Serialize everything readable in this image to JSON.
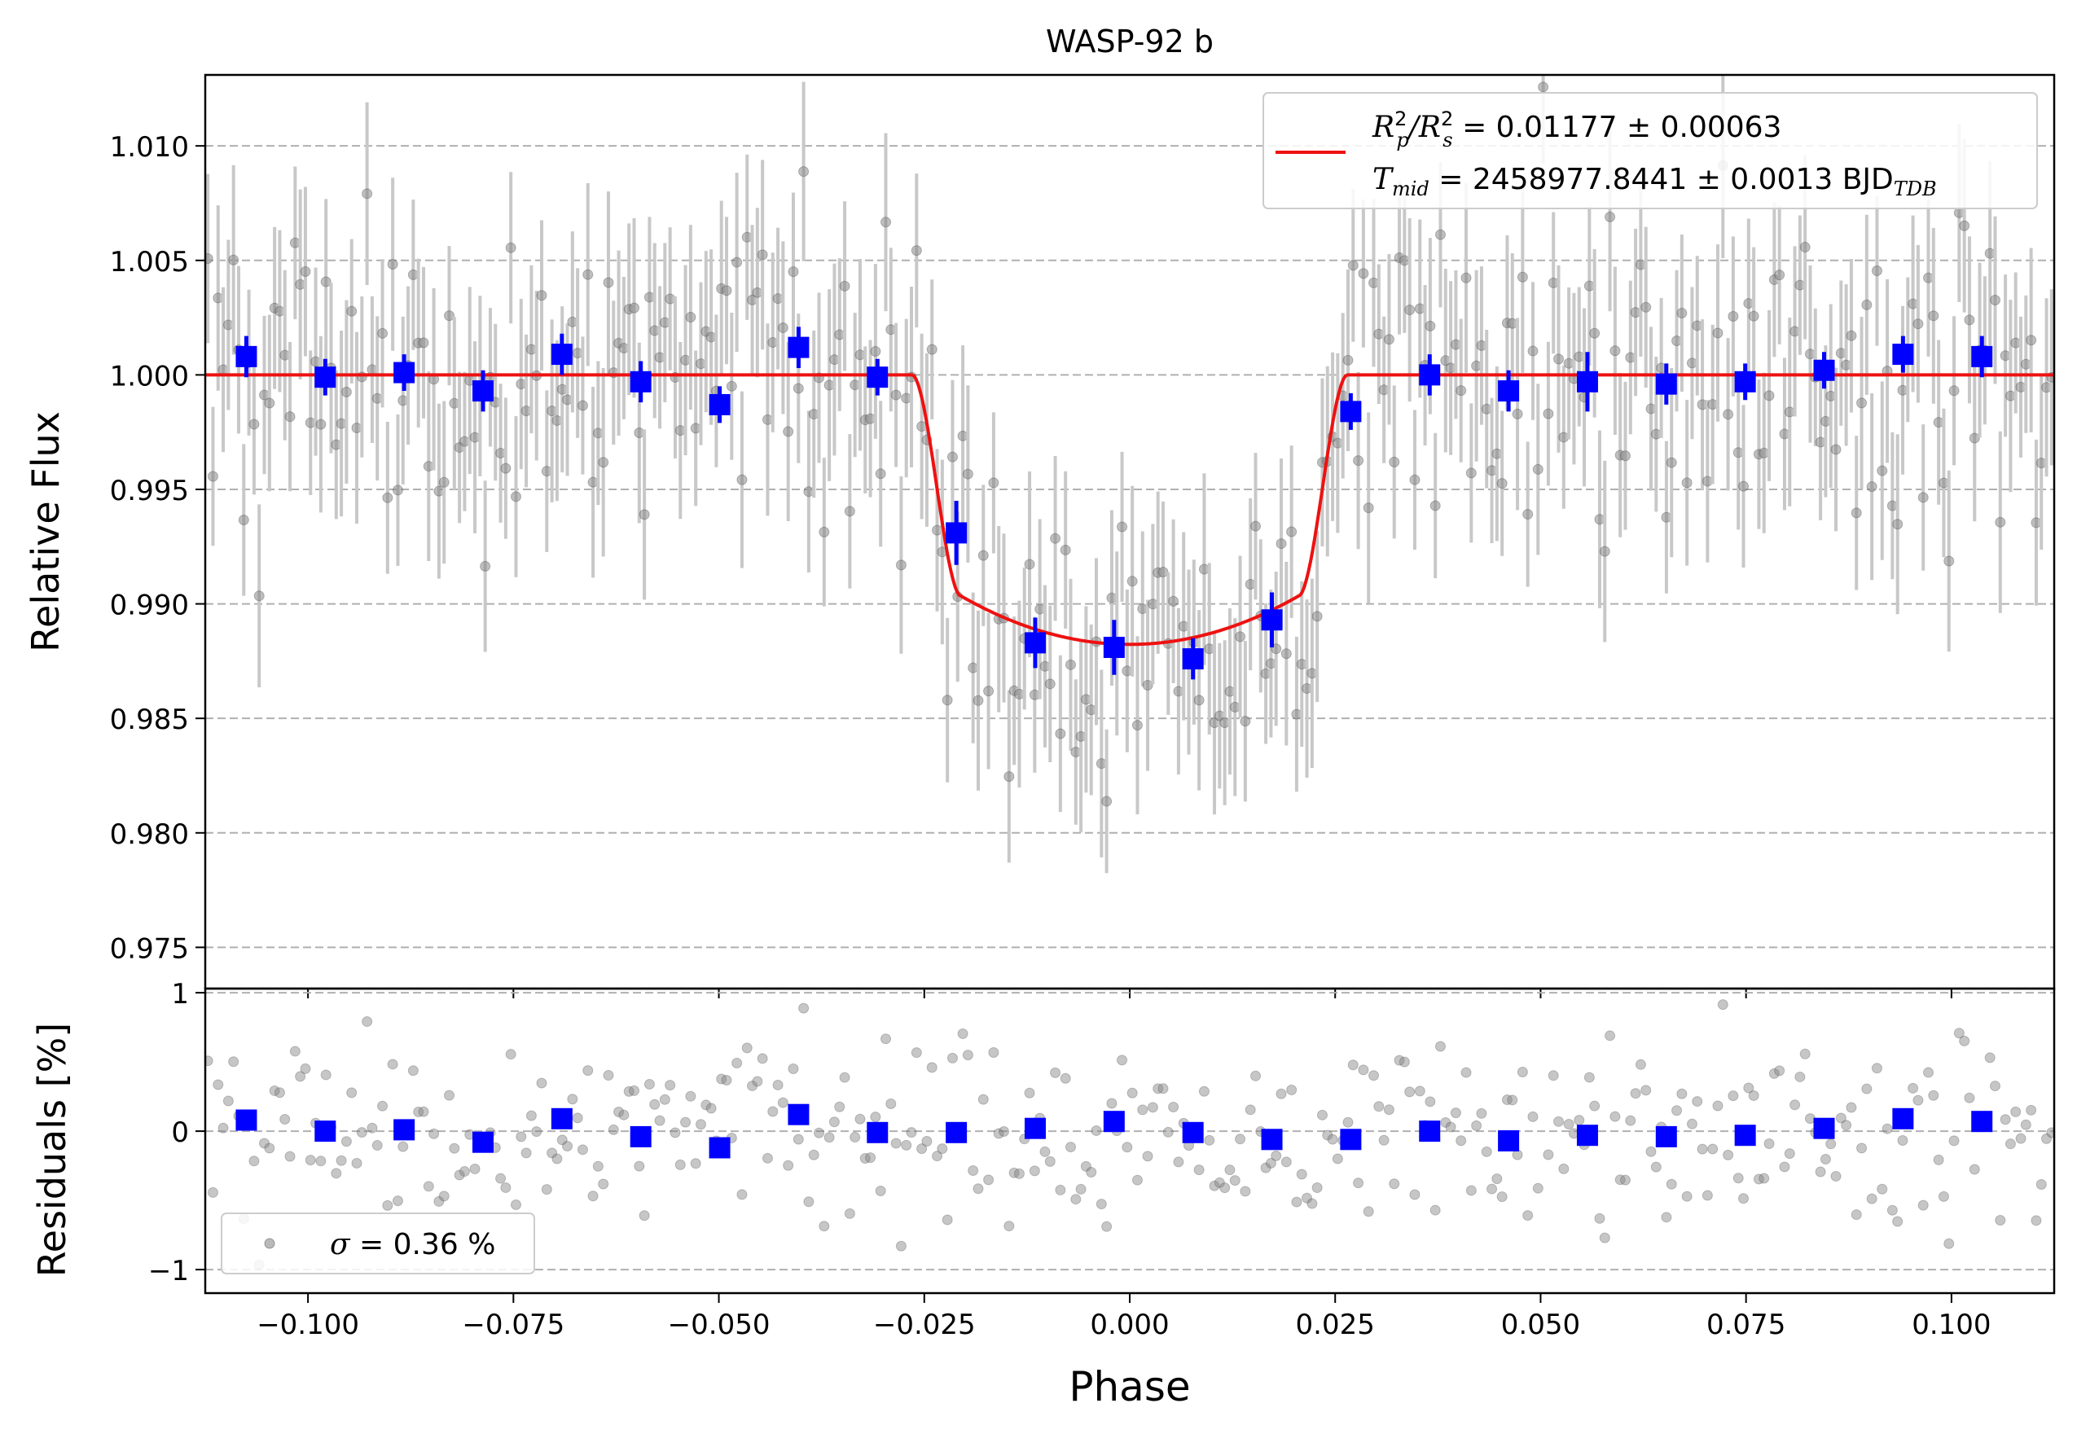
{
  "chart_data": [
    {
      "panel": "top",
      "type": "scatter",
      "title": "WASP-92 b",
      "ylabel": "Relative Flux",
      "xlabel": "",
      "xlim": [
        -0.1125,
        0.1125
      ],
      "ylim": [
        0.9732,
        1.0131
      ],
      "yticks": [
        0.975,
        0.98,
        0.985,
        0.99,
        0.995,
        1.0,
        1.005,
        1.01
      ],
      "ytick_labels": [
        "0.975",
        "0.980",
        "0.985",
        "0.990",
        "0.995",
        "1.000",
        "1.005",
        "1.010"
      ],
      "grid": "horizontal dashed",
      "legend": {
        "placement": "top-right",
        "line1": {
          "lhs": "R",
          "lhs_sup": "2",
          "lhs_sub": "p",
          "sep": "/",
          "rhs": "R",
          "rhs_sup": "2",
          "rhs_sub": "s",
          "value": " = 0.01177 ± 0.00063"
        },
        "line2": {
          "lhs": "T",
          "lhs_sub": "mid",
          "value": " = 2458977.8441 ± 0.0013 BJD",
          "unit_sub": "TDB"
        }
      },
      "model_params": {
        "depth": 0.01177,
        "t14": 0.053,
        "t23": 0.041
      },
      "colors": {
        "raw": "#808080",
        "raw_err": "#c8c8c8",
        "binned": "#0000ff",
        "model": "#ee1111",
        "grid": "#b0b0b0"
      },
      "series": [
        {
          "name": "",
          "kind": "binned",
          "x": [
            -0.1075,
            -0.0979,
            -0.0883,
            -0.0787,
            -0.0691,
            -0.0595,
            -0.0499,
            -0.0403,
            -0.0307,
            -0.0211,
            -0.0115,
            -0.0019,
            0.0077,
            0.0173,
            0.0269,
            0.0365,
            0.0461,
            0.0557,
            0.0653,
            0.0749,
            0.0845,
            0.0941,
            0.1037
          ],
          "y": [
            1.0008,
            0.9999,
            1.0001,
            0.9993,
            1.0009,
            0.9997,
            0.9987,
            1.0012,
            0.9999,
            0.9931,
            0.9883,
            0.9881,
            0.9876,
            0.9893,
            0.9984,
            1.0,
            0.9993,
            0.9997,
            0.9996,
            0.9997,
            1.0002,
            1.0009,
            1.0008
          ],
          "yerr": [
            0.0009,
            0.0008,
            0.0008,
            0.0009,
            0.0009,
            0.0009,
            0.0008,
            0.0009,
            0.0008,
            0.0014,
            0.0011,
            0.0012,
            0.0009,
            0.0012,
            0.0008,
            0.0009,
            0.0009,
            0.0013,
            0.0009,
            0.0008,
            0.0008,
            0.0008,
            0.0009
          ]
        }
      ],
      "raw_points": {
        "count": 360,
        "x_range": [
          -0.1125,
          0.1125
        ],
        "note_sigma_percent": 0.36
      }
    },
    {
      "panel": "bottom",
      "type": "scatter",
      "xlabel": "Phase",
      "ylabel": "Residuals [%]",
      "xlim": [
        -0.1125,
        0.1125
      ],
      "ylim": [
        -1.17,
        1.03
      ],
      "xticks": [
        -0.1,
        -0.075,
        -0.05,
        -0.025,
        0.0,
        0.025,
        0.05,
        0.075,
        0.1
      ],
      "xtick_labels": [
        "−0.100",
        "−0.075",
        "−0.050",
        "−0.025",
        "0.000",
        "0.025",
        "0.050",
        "0.075",
        "0.100"
      ],
      "yticks": [
        -1,
        0,
        1
      ],
      "ytick_labels": [
        "−1",
        "0",
        "1"
      ],
      "grid": "horizontal dashed",
      "legend": {
        "placement": "lower-left",
        "symbol": "σ",
        "text": " = 0.36 %"
      },
      "series": [
        {
          "name": "",
          "kind": "binned residuals",
          "x": [
            -0.1075,
            -0.0979,
            -0.0883,
            -0.0787,
            -0.0691,
            -0.0595,
            -0.0499,
            -0.0403,
            -0.0307,
            -0.0211,
            -0.0115,
            -0.0019,
            0.0077,
            0.0173,
            0.0269,
            0.0365,
            0.0461,
            0.0557,
            0.0653,
            0.0749,
            0.0845,
            0.0941,
            0.1037
          ],
          "y": [
            0.08,
            0.0,
            0.01,
            -0.08,
            0.09,
            -0.04,
            -0.12,
            0.12,
            -0.01,
            -0.01,
            0.02,
            0.07,
            -0.01,
            -0.06,
            -0.06,
            0.0,
            -0.07,
            -0.03,
            -0.04,
            -0.03,
            0.02,
            0.09,
            0.07
          ]
        }
      ]
    }
  ]
}
